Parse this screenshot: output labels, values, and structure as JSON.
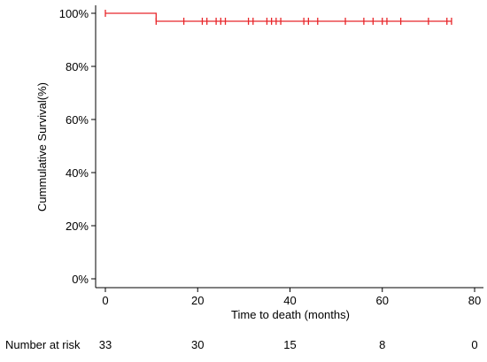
{
  "chart_data": {
    "type": "line",
    "title": "",
    "xlabel": "Time to death (months)",
    "ylabel": "Cummulative Survival(%)",
    "xlim": [
      0,
      80
    ],
    "ylim": [
      0,
      100
    ],
    "x_ticks": [
      "0",
      "20",
      "40",
      "60",
      "80"
    ],
    "y_ticks": [
      "0%",
      "20%",
      "40%",
      "60%",
      "80%",
      "100%"
    ],
    "grid": false,
    "legend": "none",
    "series": [
      {
        "color": "#e8262a",
        "steps": [
          {
            "x": 0,
            "y": 100
          },
          {
            "x": 11,
            "y": 97
          },
          {
            "x": 75,
            "y": 97
          }
        ],
        "censored_x": [
          0,
          11,
          17,
          21,
          22,
          24,
          25,
          26,
          31,
          32,
          35,
          36,
          37,
          38,
          43,
          44,
          46,
          52,
          56,
          58,
          60,
          61,
          64,
          70,
          74,
          75
        ]
      }
    ],
    "risk_table": {
      "label": "Number at risk",
      "times": [
        0,
        20,
        40,
        60,
        80
      ],
      "values": [
        "33",
        "30",
        "15",
        "8",
        "0"
      ]
    }
  }
}
